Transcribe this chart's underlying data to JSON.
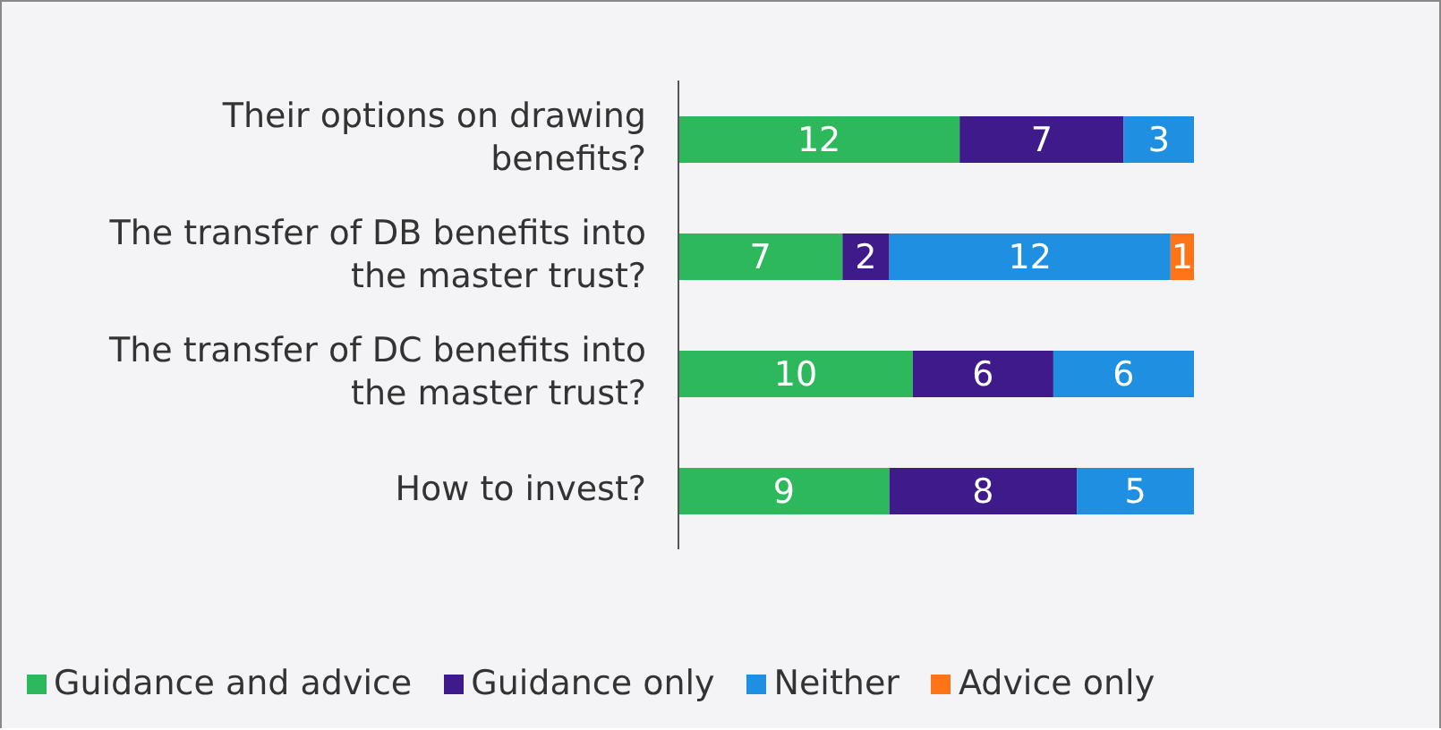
{
  "chart_data": {
    "type": "bar",
    "orientation": "horizontal",
    "stacked": true,
    "data_labels": true,
    "legend": "bottom left",
    "grid": false,
    "categories": [
      "Their options on drawing benefits?",
      "The transfer of DB benefits into the master trust?",
      "The transfer of DC benefits into the master trust?",
      "How to invest?"
    ],
    "series": [
      {
        "name": "Guidance and advice",
        "color": "#2db85c",
        "values": [
          12,
          7,
          10,
          9
        ]
      },
      {
        "name": "Guidance only",
        "color": "#3f1a8a",
        "values": [
          7,
          2,
          6,
          8
        ]
      },
      {
        "name": "Neither",
        "color": "#1e8fe1",
        "values": [
          3,
          12,
          6,
          5
        ]
      },
      {
        "name": "Advice only",
        "color": "#ff7417",
        "values": [
          null,
          1,
          null,
          null
        ]
      }
    ]
  }
}
